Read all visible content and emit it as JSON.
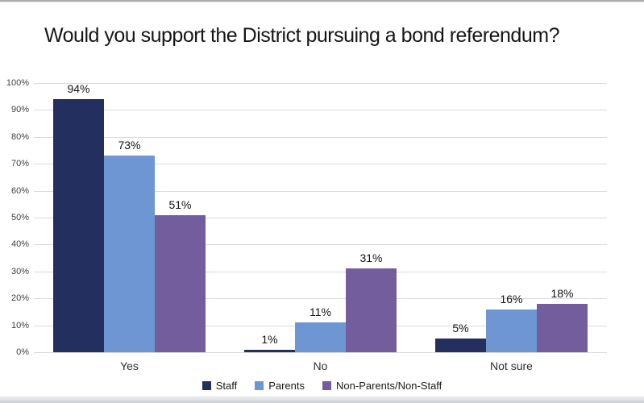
{
  "window": {
    "background": "#ffffff",
    "top_edge_color": "#adadad",
    "bottom_edge_color": "#c7cdd4"
  },
  "chart_data": {
    "type": "bar",
    "title": "Would you support the District pursuing a bond referendum?",
    "categories": [
      "Yes",
      "No",
      "Not sure"
    ],
    "series": [
      {
        "name": "Staff",
        "color": "#232F5E",
        "values": [
          94,
          1,
          5
        ],
        "labels": [
          "94%",
          "1%",
          "5%"
        ]
      },
      {
        "name": "Parents",
        "color": "#6E96D2",
        "values": [
          73,
          11,
          16
        ],
        "labels": [
          "73%",
          "11%",
          "16%"
        ]
      },
      {
        "name": "Non-Parents/Non-Staff",
        "color": "#745D9C",
        "values": [
          51,
          31,
          18
        ],
        "labels": [
          "51%",
          "31%",
          "18%"
        ]
      }
    ],
    "xlabel": "",
    "ylabel": "",
    "ylim": [
      0,
      100
    ],
    "y_ticks": [
      "100%",
      "90%",
      "80%",
      "70%",
      "60%",
      "50%",
      "40%",
      "30%",
      "20%",
      "10%",
      "0%"
    ],
    "grid": true,
    "gridline_color": "#d9d9d9",
    "axis_tick_color": "#3f3f3f",
    "data_label_color": "#141414",
    "legend_position": "bottom"
  }
}
